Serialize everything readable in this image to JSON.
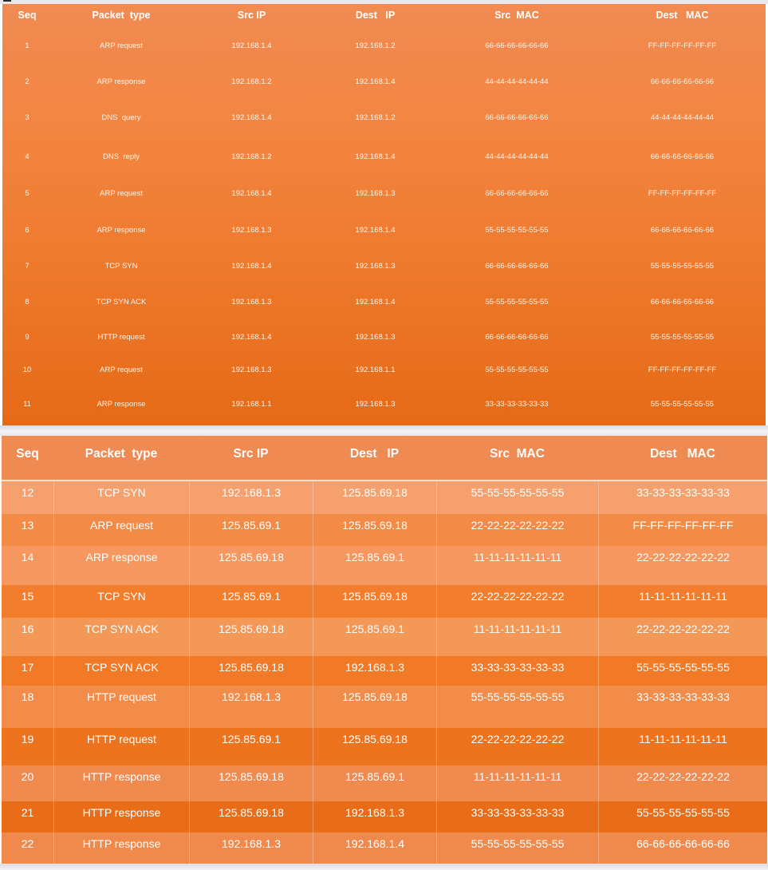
{
  "columns": [
    "Seq",
    "Packet  type",
    "Src IP",
    "Dest   IP",
    "Src  MAC",
    "Dest   MAC"
  ],
  "table1": {
    "columns": [
      "Seq",
      "Packet  type",
      "Src IP",
      "Dest   IP",
      "Src  MAC",
      "Dest   MAC"
    ],
    "rows": [
      [
        "1",
        "ARP request",
        "192.168.1.4",
        "192.168.1.2",
        "66-66-66-66-66-66",
        "FF-FF-FF-FF-FF-FF"
      ],
      [
        "2",
        "ARP response",
        "192.168.1.2",
        "192.168.1.4",
        "44-44-44-44-44-44",
        "66-66-66-66-66-66"
      ],
      [
        "3",
        "DNS  query",
        "192.168.1.4",
        "192.168.1.2",
        "66-66-66-66-66-66",
        "44-44-44-44-44-44"
      ],
      [
        "4",
        "DNS  reply",
        "192.168.1.2",
        "192.168.1.4",
        "44-44-44-44-44-44",
        "66-66-66-66-66-66"
      ],
      [
        "5",
        "ARP request",
        "192.168.1.4",
        "192.168.1.3",
        "66-66-66-66-66-66",
        "FF-FF-FF-FF-FF-FF"
      ],
      [
        "6",
        "ARP response",
        "192.168.1.3",
        "192.168.1.4",
        "55-55-55-55-55-55",
        "66-66-66-66-66-66"
      ],
      [
        "7",
        "TCP SYN",
        "192.168.1.4",
        "192.168.1.3",
        "66-66-66-66-66-66",
        "55-55-55-55-55-55"
      ],
      [
        "8",
        "TCP SYN ACK",
        "192.168.1.3",
        "192.168.1.4",
        "55-55-55-55-55-55",
        "66-66-66-66-66-66"
      ],
      [
        "9",
        "HTTP request",
        "192.168.1.4",
        "192.168.1.3",
        "66-66-66-66-66-66",
        "55-55-55-55-55-55"
      ],
      [
        "10",
        "ARP request",
        "192.168.1.3",
        "192.168.1.1",
        "55-55-55-55-55-55",
        "FF-FF-FF-FF-FF-FF"
      ],
      [
        "11",
        "ARP response",
        "192.168.1.1",
        "192.168.1.3",
        "33-33-33-33-33-33",
        "55-55-55-55-55-55"
      ]
    ]
  },
  "table2": {
    "columns": [
      "Seq",
      "Packet  type",
      "Src IP",
      "Dest   IP",
      "Src  MAC",
      "Dest   MAC"
    ],
    "rows": [
      [
        "12",
        "TCP SYN",
        "192.168.1.3",
        "125.85.69.18",
        "55-55-55-55-55-55",
        "33-33-33-33-33-33"
      ],
      [
        "13",
        "ARP request",
        "125.85.69.1",
        "125.85.69.18",
        "22-22-22-22-22-22",
        "FF-FF-FF-FF-FF-FF"
      ],
      [
        "14",
        "ARP response",
        "125.85.69.18",
        "125.85.69.1",
        "11-11-11-11-11-11",
        "22-22-22-22-22-22"
      ],
      [
        "15",
        "TCP SYN",
        "125.85.69.1",
        "125.85.69.18",
        "22-22-22-22-22-22",
        "11-11-11-11-11-11"
      ],
      [
        "16",
        "TCP SYN ACK",
        "125.85.69.18",
        "125.85.69.1",
        "11-11-11-11-11-11",
        "22-22-22-22-22-22"
      ],
      [
        "17",
        "TCP SYN ACK",
        "125.85.69.18",
        "192.168.1.3",
        "33-33-33-33-33-33",
        "55-55-55-55-55-55"
      ],
      [
        "18",
        "HTTP request",
        "192.168.1.3",
        "125.85.69.18",
        "55-55-55-55-55-55",
        "33-33-33-33-33-33"
      ],
      [
        "19",
        "HTTP request",
        "125.85.69.1",
        "125.85.69.18",
        "22-22-22-22-22-22",
        "11-11-11-11-11-11"
      ],
      [
        "20",
        "HTTP response",
        "125.85.69.18",
        "125.85.69.1",
        "11-11-11-11-11-11",
        "22-22-22-22-22-22"
      ],
      [
        "21",
        "HTTP response",
        "125.85.69.18",
        "192.168.1.3",
        "33-33-33-33-33-33",
        "55-55-55-55-55-55"
      ],
      [
        "22",
        "HTTP response",
        "192.168.1.3",
        "192.168.1.4",
        "55-55-55-55-55-55",
        "66-66-66-66-66-66"
      ]
    ],
    "row_colors": [
      "#f5a06d",
      "#f38a45",
      "#f5975e",
      "#f27d2c",
      "#f49858",
      "#f27a26",
      "#f28c48",
      "#ee731e",
      "#f18a4e",
      "#e96c18",
      "#f08a4c"
    ]
  }
}
